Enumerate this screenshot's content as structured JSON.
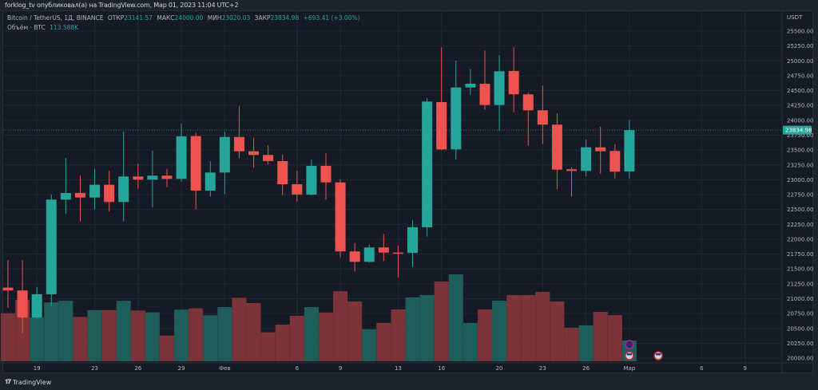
{
  "header": {
    "publisher_line": "forklog_tv опубликовал(а) на TradingView.com, Мар 01, 2023 11:04 UTC+2"
  },
  "legend": {
    "symbol": "Bitcoin / TetherUS, 1Д, BINANCE",
    "open_label": "ОТКР",
    "open": "23141.57",
    "high_label": "МАКС",
    "high": "24000.00",
    "low_label": "МИН",
    "low": "23020.03",
    "close_label": "ЗАКР",
    "close": "23834.98",
    "change": "+693.41 (+3.00%)",
    "volume_label": "Объём · BTC",
    "volume": "113.588K"
  },
  "footer": {
    "brand": "TradingView"
  },
  "colors": {
    "up": "#26a69a",
    "down": "#ef5350",
    "vol_up": "#1f5e5a",
    "vol_down": "#7c3439",
    "background": "#161a25",
    "grid": "#232734"
  },
  "chart_data": {
    "type": "candlestick",
    "currency": "USDT",
    "last_price": "23834.98",
    "ylim": [
      19950,
      25650
    ],
    "y_ticks": [
      "25500.00",
      "25250.00",
      "25000.00",
      "24750.00",
      "24500.00",
      "24250.00",
      "24000.00",
      "23750.00",
      "23500.00",
      "23250.00",
      "23000.00",
      "22750.00",
      "22500.00",
      "22250.00",
      "22000.00",
      "21750.00",
      "21500.00",
      "21250.00",
      "21000.00",
      "20750.00",
      "20500.00",
      "20250.00",
      "20000.00"
    ],
    "x_ticks": [
      {
        "date": "2023-01-19",
        "label": "19"
      },
      {
        "date": "2023-01-23",
        "label": "23"
      },
      {
        "date": "2023-01-26",
        "label": "26"
      },
      {
        "date": "2023-01-29",
        "label": "29"
      },
      {
        "date": "2023-02-01",
        "label": "Фев"
      },
      {
        "date": "2023-02-06",
        "label": "6"
      },
      {
        "date": "2023-02-09",
        "label": "9"
      },
      {
        "date": "2023-02-13",
        "label": "13"
      },
      {
        "date": "2023-02-16",
        "label": "16"
      },
      {
        "date": "2023-02-20",
        "label": "20"
      },
      {
        "date": "2023-02-23",
        "label": "23"
      },
      {
        "date": "2023-02-26",
        "label": "26"
      },
      {
        "date": "2023-03-01",
        "label": "Мар"
      },
      {
        "date": "2023-03-06",
        "label": "6"
      },
      {
        "date": "2023-03-09",
        "label": "9"
      }
    ],
    "x_range": [
      "2023-01-17",
      "2023-03-10"
    ],
    "columns": [
      "date",
      "open",
      "high",
      "low",
      "close",
      "volume_k"
    ],
    "candles": [
      [
        "2023-01-17",
        21186,
        21651,
        20847,
        21138,
        263
      ],
      [
        "2023-01-18",
        21138,
        21651,
        20422,
        20682,
        336
      ],
      [
        "2023-01-19",
        20682,
        21195,
        20660,
        21075,
        240
      ],
      [
        "2023-01-20",
        21075,
        22751,
        20874,
        22666,
        323
      ],
      [
        "2023-01-21",
        22666,
        23368,
        22425,
        22778,
        331
      ],
      [
        "2023-01-22",
        22778,
        23073,
        22299,
        22701,
        243
      ],
      [
        "2023-01-23",
        22701,
        23180,
        22500,
        22916,
        280
      ],
      [
        "2023-01-24",
        22916,
        23153,
        22470,
        22626,
        280
      ],
      [
        "2023-01-25",
        22626,
        23810,
        22299,
        23055,
        331
      ],
      [
        "2023-01-26",
        23055,
        23274,
        22849,
        23002,
        278
      ],
      [
        "2023-01-27",
        23002,
        23489,
        22536,
        23069,
        268
      ],
      [
        "2023-01-28",
        23069,
        23184,
        22876,
        23015,
        141
      ],
      [
        "2023-01-29",
        23015,
        23944,
        22970,
        23730,
        283
      ],
      [
        "2023-01-30",
        23734,
        23790,
        22500,
        22818,
        290
      ],
      [
        "2023-01-31",
        22818,
        23310,
        22715,
        23122,
        252
      ],
      [
        "2023-02-01",
        23122,
        23810,
        22760,
        23720,
        297
      ],
      [
        "2023-02-02",
        23720,
        24240,
        23358,
        23479,
        348
      ],
      [
        "2023-02-03",
        23479,
        23707,
        23203,
        23417,
        319
      ],
      [
        "2023-02-04",
        23417,
        23582,
        23251,
        23314,
        159
      ],
      [
        "2023-02-05",
        23314,
        23422,
        22742,
        22925,
        201
      ],
      [
        "2023-02-06",
        22925,
        23153,
        22634,
        22751,
        249
      ],
      [
        "2023-02-07",
        22751,
        23341,
        22740,
        23234,
        297
      ],
      [
        "2023-02-08",
        23234,
        23444,
        22671,
        22956,
        267
      ],
      [
        "2023-02-09",
        22956,
        23006,
        21696,
        21795,
        384
      ],
      [
        "2023-02-10",
        21795,
        21937,
        21454,
        21620,
        328
      ],
      [
        "2023-02-11",
        21620,
        21910,
        21607,
        21862,
        175
      ],
      [
        "2023-02-12",
        21862,
        22090,
        21634,
        21776,
        210
      ],
      [
        "2023-02-13",
        21776,
        21897,
        21360,
        21770,
        284
      ],
      [
        "2023-02-14",
        21770,
        22318,
        21531,
        22201,
        350
      ],
      [
        "2023-02-15",
        22201,
        24370,
        22044,
        24316,
        363
      ],
      [
        "2023-02-16",
        24306,
        25228,
        23500,
        23511,
        437
      ],
      [
        "2023-02-17",
        23511,
        25004,
        23337,
        24552,
        476
      ],
      [
        "2023-02-18",
        24552,
        24860,
        24423,
        24615,
        210
      ],
      [
        "2023-02-19",
        24615,
        25174,
        24182,
        24257,
        284
      ],
      [
        "2023-02-20",
        24257,
        25098,
        23824,
        24825,
        332
      ],
      [
        "2023-02-21",
        24830,
        25228,
        24136,
        24437,
        363
      ],
      [
        "2023-02-22",
        24437,
        24467,
        23573,
        24168,
        363
      ],
      [
        "2023-02-23",
        24168,
        24584,
        23600,
        23927,
        380
      ],
      [
        "2023-02-24",
        23927,
        24115,
        22841,
        23171,
        328
      ],
      [
        "2023-02-25",
        23176,
        23207,
        22715,
        23149,
        184
      ],
      [
        "2023-02-26",
        23149,
        23676,
        23059,
        23546,
        197
      ],
      [
        "2023-02-27",
        23546,
        23891,
        23104,
        23479,
        271
      ],
      [
        "2023-02-28",
        23484,
        23596,
        23023,
        23136,
        253
      ],
      [
        "2023-03-01",
        23141.57,
        24000,
        23020.03,
        23834.98,
        113.588
      ]
    ],
    "events": [
      {
        "date": "2023-03-01",
        "icon": "lightning-icon"
      },
      {
        "date": "2023-03-01",
        "icon": "us-flag-icon"
      },
      {
        "date": "2023-03-03",
        "icon": "us-flag-icon"
      }
    ]
  }
}
